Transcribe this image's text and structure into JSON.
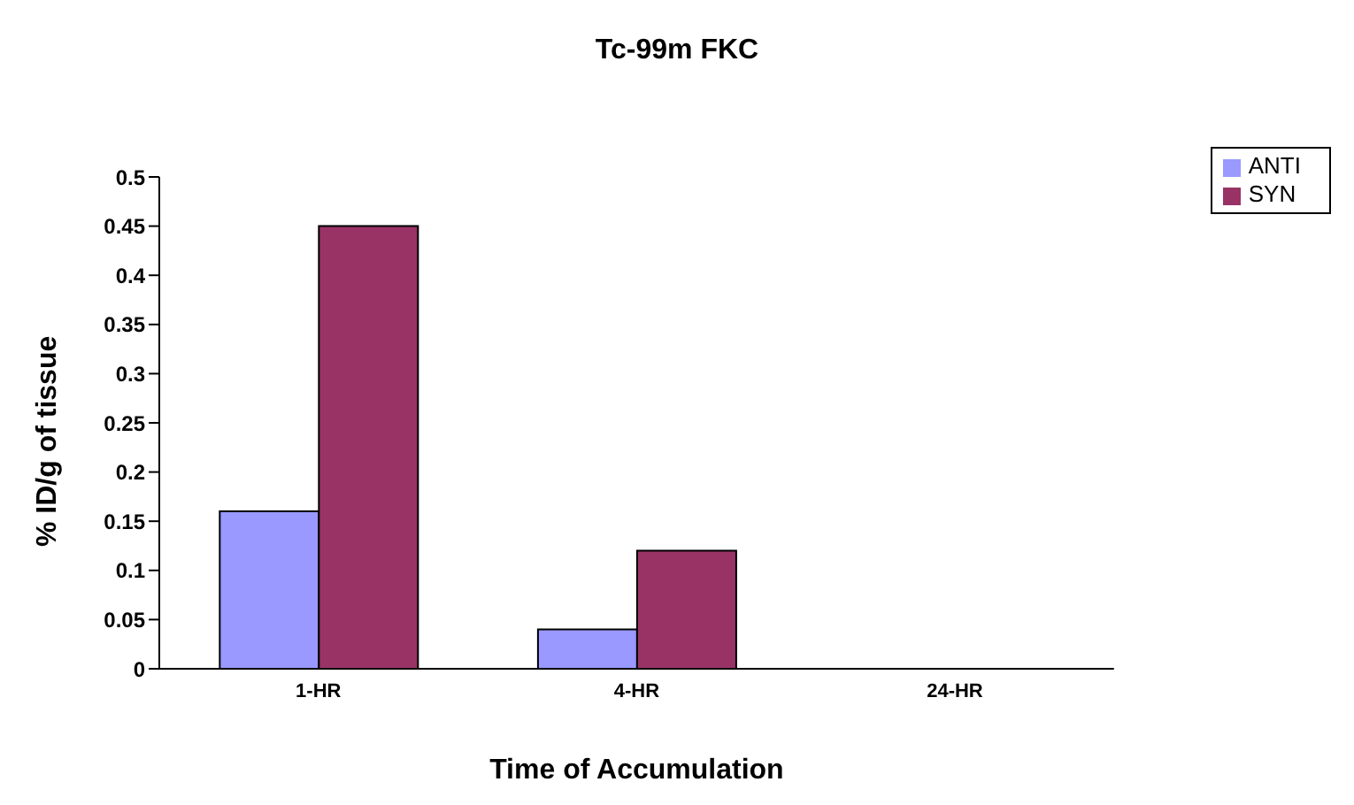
{
  "chart_data": {
    "type": "bar",
    "title": "Tc-99m FKC",
    "xlabel": "Time of Accumulation",
    "ylabel": "% ID/g of tissue",
    "categories": [
      "1-HR",
      "4-HR",
      "24-HR"
    ],
    "series": [
      {
        "name": "ANTI",
        "color": "#9999ff",
        "values": [
          0.16,
          0.04,
          0
        ]
      },
      {
        "name": "SYN",
        "color": "#993366",
        "values": [
          0.45,
          0.12,
          0
        ]
      }
    ],
    "ylim": [
      0,
      0.5
    ],
    "yticks": [
      0,
      0.05,
      0.1,
      0.15,
      0.2,
      0.25,
      0.3,
      0.35,
      0.4,
      0.45,
      0.5
    ],
    "grid": false,
    "legend": "top right"
  }
}
